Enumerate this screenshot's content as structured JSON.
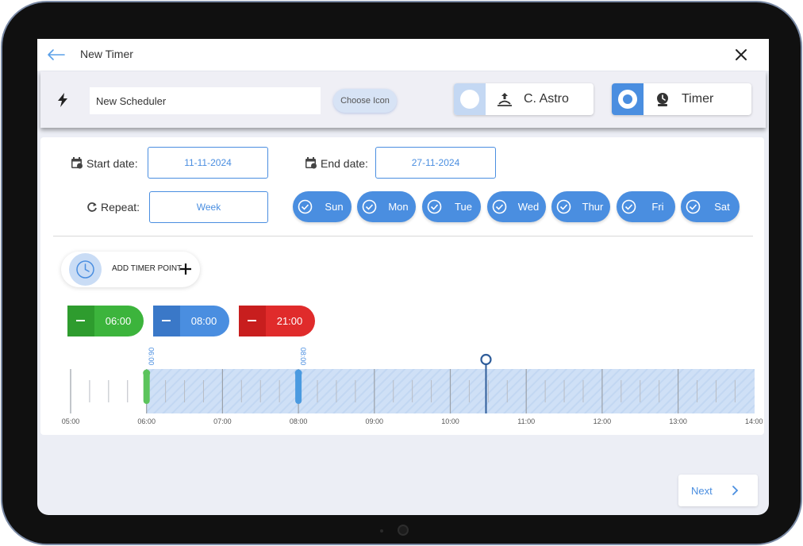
{
  "window": {
    "title": "New Timer"
  },
  "config": {
    "name_value": "New Scheduler",
    "choose_icon_label": "Choose Icon",
    "modes": [
      {
        "label": "C. Astro",
        "selected": false
      },
      {
        "label": "Timer",
        "selected": true
      }
    ]
  },
  "schedule": {
    "start_label": "Start date:",
    "start_value": "11-11-2024",
    "end_label": "End date:",
    "end_value": "27-11-2024",
    "repeat_label": "Repeat:",
    "repeat_value": "Week",
    "days": [
      "Sun",
      "Mon",
      "Tue",
      "Wed",
      "Thur",
      "Fri",
      "Sat"
    ]
  },
  "timers": {
    "add_label": "ADD TIMER POINT",
    "points": [
      {
        "time": "06:00",
        "color": "#3cb43c"
      },
      {
        "time": "08:00",
        "color": "#4a8ee0"
      },
      {
        "time": "21:00",
        "color": "#e02b2b"
      }
    ]
  },
  "timeline": {
    "hours": [
      "05:00",
      "06:00",
      "07:00",
      "08:00",
      "09:00",
      "10:00",
      "11:00",
      "12:00",
      "13:00",
      "14:00"
    ],
    "markers": [
      {
        "time": "06:00",
        "color": "#5cc45c"
      },
      {
        "time": "08:00",
        "color": "#4a9ae0"
      }
    ],
    "range_start_hours": 6,
    "current_time_hours": 10.47
  },
  "footer": {
    "next_label": "Next"
  },
  "colors": {
    "accent": "#4a8ee0",
    "green": "#3cb43c",
    "red": "#e02b2b",
    "range_fill": "#cfe0f6"
  }
}
